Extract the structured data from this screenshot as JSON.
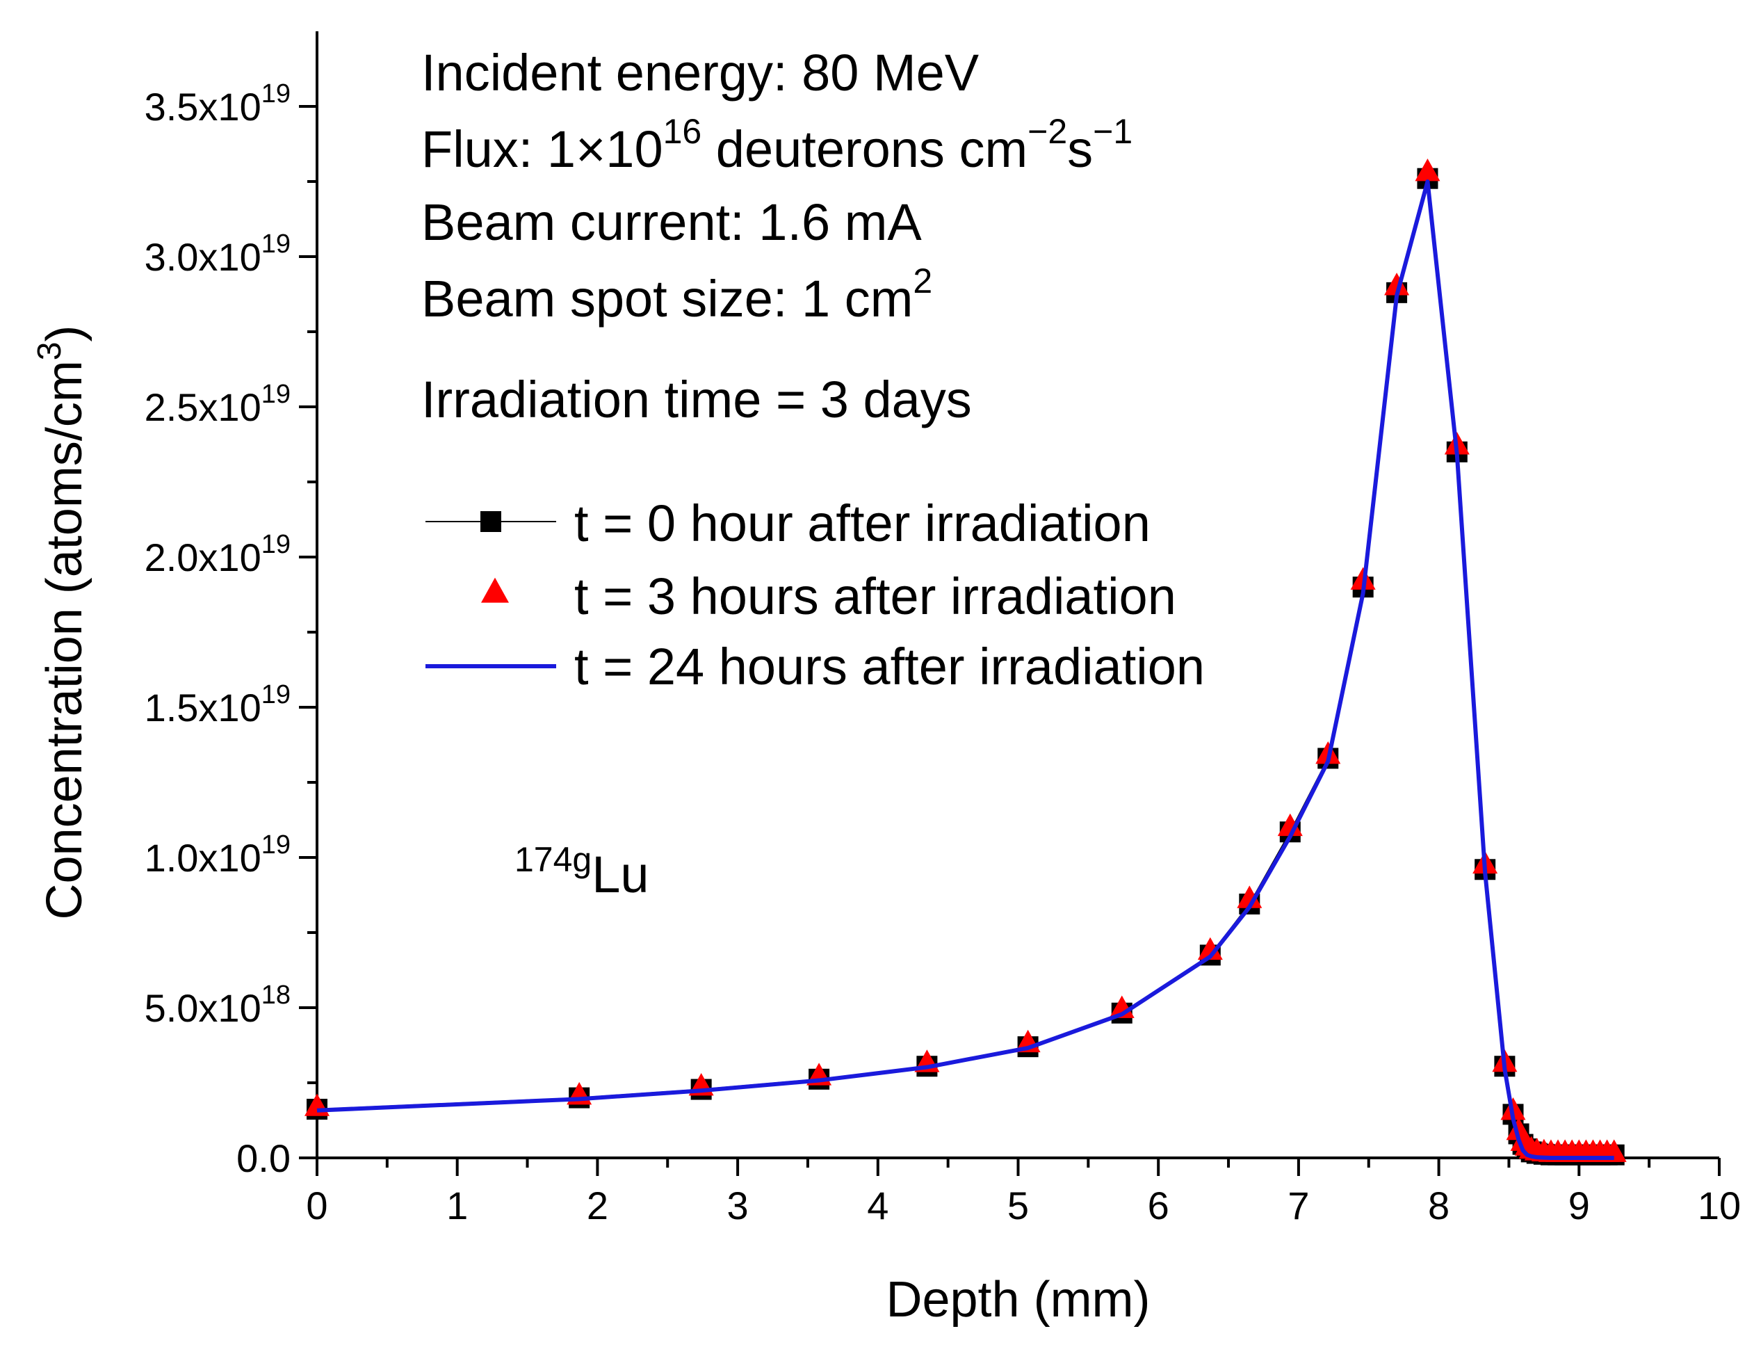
{
  "chart_data": {
    "type": "line",
    "title": "",
    "xlabel": "Depth (mm)",
    "ylabel": {
      "prefix": "Concentration (atoms/cm",
      "sup": "3",
      "suffix": ")"
    },
    "xlim": [
      0,
      10
    ],
    "ylim": [
      0,
      3.75e+19
    ],
    "x_ticks": [
      0,
      1,
      2,
      3,
      4,
      5,
      6,
      7,
      8,
      9,
      10
    ],
    "x_tick_labels": [
      "0",
      "1",
      "2",
      "3",
      "4",
      "5",
      "6",
      "7",
      "8",
      "9",
      "10"
    ],
    "y_ticks": [
      0,
      5e+18,
      1e+19,
      1.5e+19,
      2e+19,
      2.5e+19,
      3e+19,
      3.5e+19
    ],
    "y_tick_labels": [
      {
        "base": "0.0",
        "exp": ""
      },
      {
        "base": "5.0x10",
        "exp": "18"
      },
      {
        "base": "1.0x10",
        "exp": "19"
      },
      {
        "base": "1.5x10",
        "exp": "19"
      },
      {
        "base": "2.0x10",
        "exp": "19"
      },
      {
        "base": "2.5x10",
        "exp": "19"
      },
      {
        "base": "3.0x10",
        "exp": "19"
      },
      {
        "base": "3.5x10",
        "exp": "19"
      }
    ],
    "grid": false,
    "legend_position": "upper-left",
    "x": [
      0,
      1.87,
      2.74,
      3.58,
      4.35,
      5.07,
      5.74,
      6.37,
      6.65,
      6.94,
      7.21,
      7.46,
      7.7,
      7.92,
      8.13,
      8.33,
      8.47,
      8.53,
      8.57,
      8.6,
      8.63,
      8.66,
      8.7,
      8.75,
      8.8,
      8.85,
      8.9,
      8.95,
      9.0,
      9.05,
      9.1,
      9.15,
      9.2,
      9.25
    ],
    "series": [
      {
        "name": "t = 0 hour after irradiation",
        "marker": "square",
        "color": "#000000",
        "line": "thin",
        "values": [
          1.62e+18,
          2e+18,
          2.28e+18,
          2.62e+18,
          3.05e+18,
          3.7e+18,
          4.82e+18,
          6.75e+18,
          8.45e+18,
          1.085e+19,
          1.33e+19,
          1.9e+19,
          2.88e+19,
          3.26e+19,
          2.35e+19,
          9.6e+18,
          3.05e+18,
          1.45e+18,
          8e+17,
          4.5e+17,
          3e+17,
          2e+17,
          1.5e+17,
          1.2e+17,
          1e+17,
          1e+17,
          1e+17,
          1e+17,
          1e+17,
          1e+17,
          1e+17,
          1e+17,
          1e+17,
          1e+17
        ]
      },
      {
        "name": "t = 3 hours after irradiation",
        "marker": "triangle",
        "color": "#ff0000",
        "line": "none",
        "values": [
          1.68e+18,
          2.06e+18,
          2.36e+18,
          2.7e+18,
          3.14e+18,
          3.8e+18,
          4.94e+18,
          6.88e+18,
          8.6e+18,
          1.1e+19,
          1.34e+19,
          1.92e+19,
          2.9e+19,
          3.28e+19,
          2.37e+19,
          9.75e+18,
          3.15e+18,
          1.55e+18,
          8.8e+17,
          5.2e+17,
          3.6e+17,
          2.6e+17,
          2e+17,
          1.7e+17,
          1.5e+17,
          1.5e+17,
          1.5e+17,
          1.5e+17,
          1.5e+17,
          1.5e+17,
          1.5e+17,
          1.5e+17,
          1.5e+17,
          1.5e+17
        ]
      },
      {
        "name": "t = 24 hours after irradiation",
        "marker": "none",
        "color": "#1a1adc",
        "line": "thick",
        "values": [
          1.58e+18,
          1.96e+18,
          2.24e+18,
          2.58e+18,
          3.02e+18,
          3.66e+18,
          4.78e+18,
          6.7e+18,
          8.35e+18,
          1.07e+19,
          1.32e+19,
          1.88e+19,
          2.87e+19,
          3.25e+19,
          2.34e+19,
          9.5e+18,
          2.95e+18,
          1.3e+18,
          6e+17,
          2.5e+17,
          1e+17,
          5e+16,
          2e+16,
          1e+16,
          0,
          0,
          0,
          0,
          0,
          0,
          0,
          0,
          0,
          0
        ]
      }
    ],
    "annotations": {
      "lines": [
        {
          "text": "Incident energy: 80 MeV"
        },
        {
          "text": "Flux: 1×10",
          "sup": "16",
          "text2": " deuterons cm",
          "sup2": "−2",
          "text3": "s",
          "sup3": "−1"
        },
        {
          "text": "Beam current: 1.6 mA"
        },
        {
          "text": "Beam spot size: 1 cm",
          "sup": "2"
        },
        {
          "text": "Irradiation time = 3 days"
        }
      ],
      "isotope": {
        "sup": "174g",
        "text": "Lu"
      }
    },
    "legend": [
      {
        "label": "t = 0 hour after irradiation"
      },
      {
        "label": "t = 3 hours after irradiation"
      },
      {
        "label": "t = 24 hours after irradiation"
      }
    ]
  }
}
